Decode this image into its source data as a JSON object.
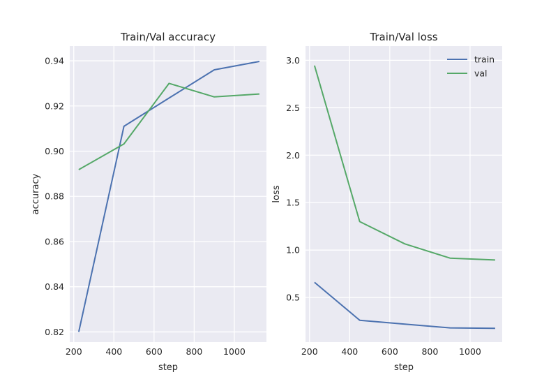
{
  "chart_data": [
    {
      "type": "line",
      "title": "Train/Val accuracy",
      "xlabel": "step",
      "ylabel": "accuracy",
      "xlim": [
        180,
        1160
      ],
      "ylim": [
        0.8155,
        0.9465
      ],
      "xticks": [
        200,
        400,
        600,
        800,
        1000
      ],
      "yticks": [
        0.82,
        0.84,
        0.86,
        0.88,
        0.9,
        0.92,
        0.94
      ],
      "ytick_labels": [
        "0.82",
        "0.84",
        "0.86",
        "0.88",
        "0.90",
        "0.92",
        "0.94"
      ],
      "grid": true,
      "legend": null,
      "x": [
        225,
        450,
        675,
        900,
        1125
      ],
      "series": [
        {
          "key": "train",
          "values": [
            0.82,
            0.911,
            0.9235,
            0.936,
            0.9397
          ],
          "color": "#4c72b0"
        },
        {
          "key": "val",
          "values": [
            0.8918,
            0.9032,
            0.93,
            0.924,
            0.9253
          ],
          "color": "#55a868"
        }
      ]
    },
    {
      "type": "line",
      "title": "Train/Val loss",
      "xlabel": "step",
      "ylabel": "loss",
      "xlim": [
        180,
        1160
      ],
      "ylim": [
        0.03,
        3.15
      ],
      "xticks": [
        200,
        400,
        600,
        800,
        1000
      ],
      "yticks": [
        0.5,
        1.0,
        1.5,
        2.0,
        2.5,
        3.0
      ],
      "ytick_labels": [
        "0.5",
        "1.0",
        "1.5",
        "2.0",
        "2.5",
        "3.0"
      ],
      "grid": true,
      "legend": "top-right",
      "x": [
        225,
        450,
        675,
        900,
        1125
      ],
      "series": [
        {
          "name": "train",
          "values": [
            0.66,
            0.26,
            0.22,
            0.18,
            0.175
          ],
          "color": "#4c72b0"
        },
        {
          "name": "val",
          "values": [
            2.945,
            1.3,
            1.065,
            0.915,
            0.895
          ],
          "color": "#55a868"
        }
      ]
    }
  ],
  "style": {
    "axes_background": "#eaeaf2",
    "grid_color": "#ffffff",
    "text_color": "#262626"
  }
}
